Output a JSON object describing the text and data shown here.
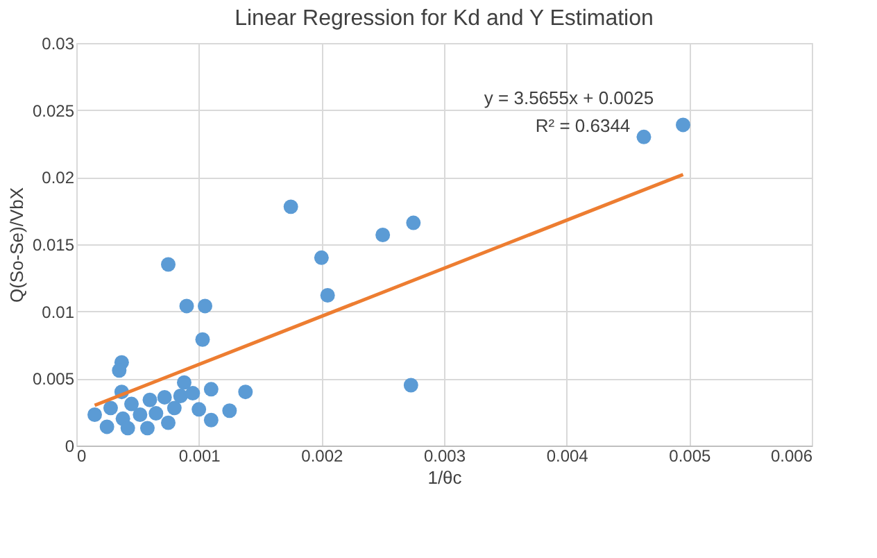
{
  "chart_data": {
    "type": "scatter",
    "title": "Linear Regression for Kd and Y Estimation",
    "xlabel": "1/θc",
    "ylabel": "Q(So-Se)/VbX",
    "xlim": [
      0,
      0.006
    ],
    "xticks": [
      0,
      0.001,
      0.002,
      0.003,
      0.004,
      0.005,
      0.006
    ],
    "ylim": [
      0,
      0.03
    ],
    "yticks": [
      0,
      0.005,
      0.01,
      0.015,
      0.02,
      0.025,
      0.03
    ],
    "grid": true,
    "legend": false,
    "annotations": [
      "y = 3.5655x + 0.0025",
      "R² = 0.6344"
    ],
    "series": [
      {
        "marker": "circle",
        "color": "#5b9bd5",
        "x": [
          0.00075,
          0.0009,
          0.00105,
          0.00103,
          0.00175,
          0.002,
          0.00205,
          0.0025,
          0.00275,
          0.00273,
          0.00463,
          0.00495,
          0.00037,
          0.00035,
          0.00037,
          0.00125,
          0.00138,
          0.0011,
          0.001,
          0.0011,
          0.00088,
          0.00075,
          0.00015,
          0.00025,
          0.00028,
          0.00038,
          0.00042,
          0.00045,
          0.00052,
          0.00058,
          0.0006,
          0.00065,
          0.00072,
          0.0008,
          0.00085,
          0.00095
        ],
        "values": [
          0.0135,
          0.0104,
          0.0104,
          0.0079,
          0.0178,
          0.014,
          0.0112,
          0.0157,
          0.0166,
          0.0045,
          0.023,
          0.0239,
          0.0062,
          0.0056,
          0.004,
          0.0026,
          0.004,
          0.0019,
          0.0027,
          0.0042,
          0.0047,
          0.0017,
          0.0023,
          0.0014,
          0.0028,
          0.002,
          0.0013,
          0.0031,
          0.0023,
          0.0013,
          0.0034,
          0.0024,
          0.0036,
          0.0028,
          0.0037,
          0.0039
        ]
      },
      {
        "type": "line",
        "color": "#ed7d31",
        "x": [
          0.00015,
          0.00495
        ],
        "values": [
          0.003,
          0.0202
        ]
      }
    ]
  }
}
